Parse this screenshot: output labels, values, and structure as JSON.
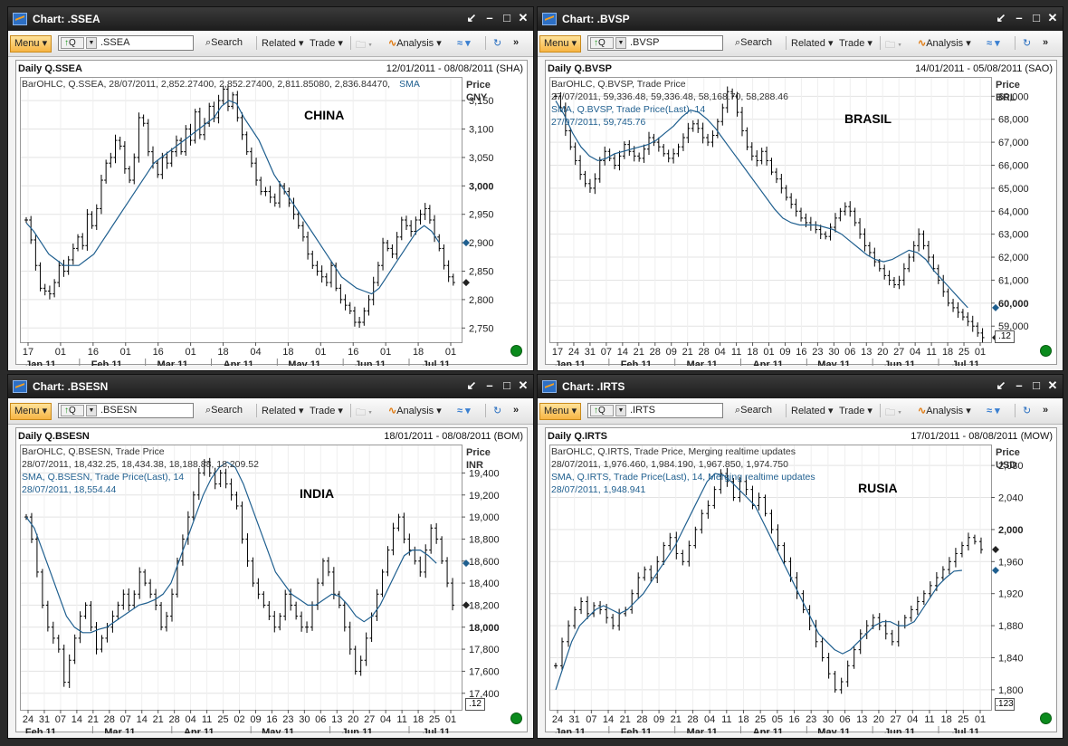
{
  "windows": [
    {
      "title": "Chart: .SSEA",
      "symbol": ".SSEA",
      "header_left": "Daily Q.SSEA",
      "header_right": "12/01/2011 - 08/08/2011 (SHA)",
      "legend_lines": [
        "BarOHLC, Q.SSEA, 28/07/2011, 2,852.27400, 2,852.27400, 2,811.85080, 2,836.84470,"
      ],
      "legend_sma": [
        "SMA"
      ],
      "country": "CHINA",
      "price_label": "Price",
      "currency": "CNY",
      "last_box": "",
      "y_ticks": [
        {
          "v": 3150,
          "label": "3,150",
          "bold": false
        },
        {
          "v": 3100,
          "label": "3,100",
          "bold": false
        },
        {
          "v": 3050,
          "label": "3,050",
          "bold": false
        },
        {
          "v": 3000,
          "label": "3,000",
          "bold": true
        },
        {
          "v": 2950,
          "label": "2,950",
          "bold": false
        },
        {
          "v": 2900,
          "label": "2,900",
          "bold": false
        },
        {
          "v": 2850,
          "label": "2,850",
          "bold": false
        },
        {
          "v": 2800,
          "label": "2,800",
          "bold": false
        },
        {
          "v": 2750,
          "label": "2,750",
          "bold": false
        }
      ],
      "x_days": [
        "17",
        "01",
        "16",
        "01",
        "16",
        "01",
        "18",
        "04",
        "18",
        "01",
        "16",
        "01",
        "18",
        "01"
      ],
      "x_months": [
        "Jan 11",
        "Feb 11",
        "Mar 11",
        "Apr 11",
        "May 11",
        "Jun 11",
        "Jul 11"
      ]
    },
    {
      "title": "Chart: .BVSP",
      "symbol": ".BVSP",
      "header_left": "Daily Q.BVSP",
      "header_right": "14/01/2011 - 05/08/2011 (SAO)",
      "legend_lines": [
        "BarOHLC, Q.BVSP, Trade Price",
        "27/07/2011, 59,336.48, 59,336.48, 58,168.70, 58,288.46"
      ],
      "legend_sma": [
        "SMA, Q.BVSP, Trade Price(Last),  14",
        "27/07/2011, 59,745.76"
      ],
      "country": "BRASIL",
      "price_label": "Price",
      "currency": "BRL",
      "last_box": ".12",
      "y_ticks": [
        {
          "v": 69000,
          "label": "69,000",
          "bold": false
        },
        {
          "v": 68000,
          "label": "68,000",
          "bold": false
        },
        {
          "v": 67000,
          "label": "67,000",
          "bold": false
        },
        {
          "v": 66000,
          "label": "66,000",
          "bold": false
        },
        {
          "v": 65000,
          "label": "65,000",
          "bold": false
        },
        {
          "v": 64000,
          "label": "64,000",
          "bold": false
        },
        {
          "v": 63000,
          "label": "63,000",
          "bold": false
        },
        {
          "v": 62000,
          "label": "62,000",
          "bold": false
        },
        {
          "v": 61000,
          "label": "61,000",
          "bold": false
        },
        {
          "v": 60000,
          "label": "60,000",
          "bold": true
        },
        {
          "v": 59000,
          "label": "59,000",
          "bold": false
        }
      ],
      "x_days": [
        "17",
        "24",
        "31",
        "07",
        "14",
        "21",
        "28",
        "09",
        "21",
        "28",
        "04",
        "11",
        "18",
        "01",
        "09",
        "16",
        "23",
        "30",
        "06",
        "13",
        "20",
        "27",
        "04",
        "11",
        "18",
        "25",
        "01"
      ],
      "x_months": [
        "Jan 11",
        "Feb 11",
        "Mar 11",
        "Apr 11",
        "May 11",
        "Jun 11",
        "Jul 11"
      ]
    },
    {
      "title": "Chart: .BSESN",
      "symbol": ".BSESN",
      "header_left": "Daily Q.BSESN",
      "header_right": "18/01/2011 - 08/08/2011 (BOM)",
      "legend_lines": [
        "BarOHLC, Q.BSESN, Trade Price",
        "28/07/2011, 18,432.25, 18,434.38, 18,188.88, 18,209.52"
      ],
      "legend_sma": [
        "SMA, Q.BSESN, Trade Price(Last),  14",
        "28/07/2011, 18,554.44"
      ],
      "country": "INDIA",
      "price_label": "Price",
      "currency": "INR",
      "last_box": ".12",
      "y_ticks": [
        {
          "v": 19400,
          "label": "19,400",
          "bold": false
        },
        {
          "v": 19200,
          "label": "19,200",
          "bold": false
        },
        {
          "v": 19000,
          "label": "19,000",
          "bold": false
        },
        {
          "v": 18800,
          "label": "18,800",
          "bold": false
        },
        {
          "v": 18600,
          "label": "18,600",
          "bold": false
        },
        {
          "v": 18400,
          "label": "18,400",
          "bold": false
        },
        {
          "v": 18200,
          "label": "18,200",
          "bold": false
        },
        {
          "v": 18000,
          "label": "18,000",
          "bold": true
        },
        {
          "v": 17800,
          "label": "17,800",
          "bold": false
        },
        {
          "v": 17600,
          "label": "17,600",
          "bold": false
        },
        {
          "v": 17400,
          "label": "17,400",
          "bold": false
        }
      ],
      "x_days": [
        "24",
        "31",
        "07",
        "14",
        "21",
        "28",
        "07",
        "14",
        "21",
        "28",
        "04",
        "11",
        "25",
        "02",
        "09",
        "16",
        "23",
        "30",
        "06",
        "13",
        "20",
        "27",
        "04",
        "11",
        "18",
        "25",
        "01"
      ],
      "x_months": [
        "Feb 11",
        "Mar 11",
        "Apr 11",
        "May 11",
        "Jun 11",
        "Jul 11"
      ]
    },
    {
      "title": "Chart: .IRTS",
      "symbol": ".IRTS",
      "header_left": "Daily Q.IRTS",
      "header_right": "17/01/2011 - 08/08/2011 (MOW)",
      "legend_lines": [
        "BarOHLC, Q.IRTS, Trade Price,  Merging realtime updates",
        "28/07/2011, 1,976.460, 1,984.190, 1,967.850, 1,974.750"
      ],
      "legend_sma": [
        "SMA, Q.IRTS, Trade Price(Last),  14,  Merging realtime updates",
        "28/07/2011, 1,948.941"
      ],
      "country": "RUSIA",
      "price_label": "Price",
      "currency": "USD",
      "last_box": ".123",
      "y_ticks": [
        {
          "v": 2080,
          "label": "2,080",
          "bold": false
        },
        {
          "v": 2040,
          "label": "2,040",
          "bold": false
        },
        {
          "v": 2000,
          "label": "2,000",
          "bold": true
        },
        {
          "v": 1960,
          "label": "1,960",
          "bold": false
        },
        {
          "v": 1920,
          "label": "1,920",
          "bold": false
        },
        {
          "v": 1880,
          "label": "1,880",
          "bold": false
        },
        {
          "v": 1840,
          "label": "1,840",
          "bold": false
        },
        {
          "v": 1800,
          "label": "1,800",
          "bold": false
        }
      ],
      "x_days": [
        "24",
        "31",
        "07",
        "14",
        "21",
        "28",
        "09",
        "21",
        "28",
        "04",
        "11",
        "18",
        "25",
        "05",
        "16",
        "23",
        "30",
        "06",
        "13",
        "20",
        "27",
        "04",
        "11",
        "18",
        "25",
        "01"
      ],
      "x_months": [
        "Jan 11",
        "Feb 11",
        "Mar 11",
        "Apr 11",
        "May 11",
        "Jun 11",
        "Jul 11"
      ]
    }
  ],
  "toolbar": {
    "menu": "Menu",
    "q_label": "Q",
    "search": "Search",
    "related": "Related",
    "trade": "Trade",
    "analysis": "Analysis"
  },
  "chart_data": [
    {
      "type": "bar",
      "title": "Daily Q.SSEA",
      "ylabel": "Price CNY",
      "ylim": [
        2725,
        3190
      ],
      "date_range": [
        "2011-01-12",
        "2011-08-08"
      ],
      "series": [
        {
          "name": "BarOHLC Q.SSEA",
          "values": [
            2940,
            2905,
            2860,
            2820,
            2815,
            2810,
            2830,
            2860,
            2850,
            2870,
            2890,
            2910,
            2895,
            2950,
            2930,
            2960,
            3010,
            3040,
            3050,
            3080,
            3070,
            3030,
            3010,
            3050,
            3120,
            3110,
            3060,
            3040,
            3020,
            3050,
            3040,
            3060,
            3080,
            3060,
            3100,
            3080,
            3130,
            3090,
            3110,
            3140,
            3120,
            3150,
            3170,
            3140,
            3160,
            3120,
            3090,
            3060,
            3040,
            3010,
            2990,
            2990,
            2980,
            2970,
            3000,
            2990,
            2970,
            2950,
            2930,
            2910,
            2880,
            2860,
            2850,
            2840,
            2830,
            2860,
            2820,
            2800,
            2790,
            2780,
            2760,
            2760,
            2780,
            2800,
            2830,
            2860,
            2900,
            2890,
            2880,
            2910,
            2940,
            2930,
            2920,
            2940,
            2950,
            2960,
            2940,
            2910,
            2890,
            2860,
            2840,
            2830
          ]
        },
        {
          "name": "SMA 14",
          "values": [
            2935,
            2920,
            2900,
            2880,
            2870,
            2860,
            2860,
            2860,
            2870,
            2880,
            2900,
            2920,
            2940,
            2960,
            2980,
            3000,
            3020,
            3040,
            3050,
            3060,
            3070,
            3080,
            3090,
            3100,
            3110,
            3120,
            3140,
            3150,
            3145,
            3120,
            3100,
            3080,
            3050,
            3020,
            3000,
            2980,
            2960,
            2940,
            2920,
            2900,
            2880,
            2860,
            2840,
            2830,
            2820,
            2815,
            2810,
            2820,
            2840,
            2860,
            2880,
            2900,
            2920,
            2930,
            2920,
            2900
          ]
        }
      ]
    },
    {
      "type": "bar",
      "title": "Daily Q.BVSP",
      "ylabel": "Price BRL",
      "ylim": [
        58300,
        69800
      ],
      "date_range": [
        "2011-01-14",
        "2011-08-05"
      ],
      "series": [
        {
          "name": "BarOHLC Q.BVSP",
          "values": [
            69000,
            68500,
            67500,
            66800,
            66200,
            65600,
            65200,
            65000,
            65400,
            66200,
            66600,
            66300,
            66000,
            66400,
            66900,
            66600,
            66400,
            66300,
            66700,
            67200,
            67000,
            66800,
            66500,
            66300,
            66500,
            66800,
            67200,
            67600,
            67800,
            67600,
            67200,
            67000,
            67300,
            67900,
            68500,
            69200,
            69000,
            68300,
            67500,
            66800,
            66400,
            66200,
            66600,
            66200,
            65700,
            65400,
            65000,
            64600,
            64300,
            64000,
            63700,
            63500,
            63400,
            63200,
            63000,
            62900,
            63300,
            63700,
            64000,
            64200,
            64000,
            63500,
            63000,
            62500,
            62200,
            61800,
            61500,
            61200,
            61000,
            60800,
            61000,
            61500,
            62000,
            62500,
            63000,
            62500,
            62000,
            61500,
            61000,
            60500,
            60000,
            59800,
            59600,
            59400,
            59200,
            59000,
            58700,
            58500
          ]
        },
        {
          "name": "SMA 14",
          "values": [
            68800,
            68200,
            67400,
            66800,
            66400,
            66200,
            66300,
            66500,
            66600,
            66700,
            66800,
            66900,
            67100,
            67400,
            67700,
            68100,
            68400,
            68300,
            68000,
            67600,
            67100,
            66600,
            66100,
            65600,
            65100,
            64600,
            64100,
            63700,
            63500,
            63400,
            63400,
            63400,
            63300,
            63200,
            63000,
            62700,
            62400,
            62100,
            61900,
            61800,
            61900,
            62100,
            62300,
            62200,
            61900,
            61400,
            61000,
            60600,
            60200,
            59800
          ]
        }
      ]
    },
    {
      "type": "bar",
      "title": "Daily Q.BSESN",
      "ylabel": "Price INR",
      "ylim": [
        17250,
        19650
      ],
      "date_range": [
        "2011-01-18",
        "2011-08-08"
      ],
      "series": [
        {
          "name": "BarOHLC Q.BSESN",
          "values": [
            19000,
            18800,
            18500,
            18200,
            18000,
            17900,
            17800,
            17500,
            17700,
            17900,
            18100,
            18200,
            18000,
            17800,
            17900,
            18000,
            18100,
            18200,
            18300,
            18200,
            18300,
            18500,
            18400,
            18300,
            18200,
            18000,
            18100,
            18300,
            18600,
            18800,
            19000,
            19200,
            19400,
            19500,
            19400,
            19300,
            19400,
            19300,
            19200,
            19100,
            18800,
            18600,
            18400,
            18300,
            18200,
            18100,
            18000,
            18100,
            18300,
            18200,
            18100,
            18000,
            18000,
            18200,
            18400,
            18600,
            18500,
            18300,
            18200,
            18000,
            17800,
            17600,
            17700,
            17900,
            18100,
            18300,
            18500,
            18700,
            18900,
            19000,
            18800,
            18700,
            18600,
            18500,
            18700,
            18900,
            18800,
            18600,
            18400,
            18200
          ]
        },
        {
          "name": "SMA 14",
          "values": [
            19000,
            18900,
            18700,
            18500,
            18300,
            18100,
            18000,
            17950,
            17950,
            17980,
            18000,
            18050,
            18100,
            18150,
            18200,
            18220,
            18250,
            18300,
            18400,
            18600,
            18800,
            19000,
            19200,
            19350,
            19450,
            19500,
            19450,
            19300,
            19100,
            18900,
            18700,
            18500,
            18400,
            18300,
            18250,
            18200,
            18200,
            18250,
            18300,
            18280,
            18200,
            18100,
            18050,
            18100,
            18200,
            18350,
            18500,
            18650,
            18700,
            18700,
            18650,
            18580
          ]
        }
      ]
    },
    {
      "type": "bar",
      "title": "Daily Q.IRTS",
      "ylabel": "Price USD",
      "ylim": [
        1775,
        2105
      ],
      "date_range": [
        "2011-01-17",
        "2011-08-08"
      ],
      "series": [
        {
          "name": "BarOHLC Q.IRTS",
          "values": [
            1830,
            1860,
            1880,
            1900,
            1910,
            1895,
            1905,
            1900,
            1890,
            1880,
            1895,
            1900,
            1920,
            1940,
            1950,
            1940,
            1960,
            1980,
            1990,
            1970,
            1960,
            1980,
            2000,
            2020,
            2030,
            2050,
            2070,
            2060,
            2040,
            2060,
            2050,
            2030,
            2040,
            2020,
            2000,
            1980,
            1960,
            1940,
            1920,
            1900,
            1880,
            1860,
            1840,
            1820,
            1800,
            1810,
            1830,
            1850,
            1870,
            1880,
            1890,
            1880,
            1870,
            1860,
            1880,
            1890,
            1900,
            1910,
            1920,
            1930,
            1940,
            1950,
            1960,
            1970,
            1980,
            1990,
            1985,
            1975
          ]
        },
        {
          "name": "SMA 14",
          "values": [
            1800,
            1830,
            1860,
            1880,
            1890,
            1900,
            1905,
            1900,
            1895,
            1900,
            1910,
            1920,
            1935,
            1950,
            1965,
            1980,
            2000,
            2020,
            2040,
            2060,
            2070,
            2068,
            2060,
            2050,
            2040,
            2030,
            2010,
            1990,
            1970,
            1950,
            1930,
            1910,
            1890,
            1870,
            1860,
            1850,
            1845,
            1850,
            1860,
            1870,
            1880,
            1885,
            1885,
            1880,
            1880,
            1885,
            1900,
            1915,
            1930,
            1940,
            1948,
            1949
          ]
        }
      ]
    }
  ]
}
